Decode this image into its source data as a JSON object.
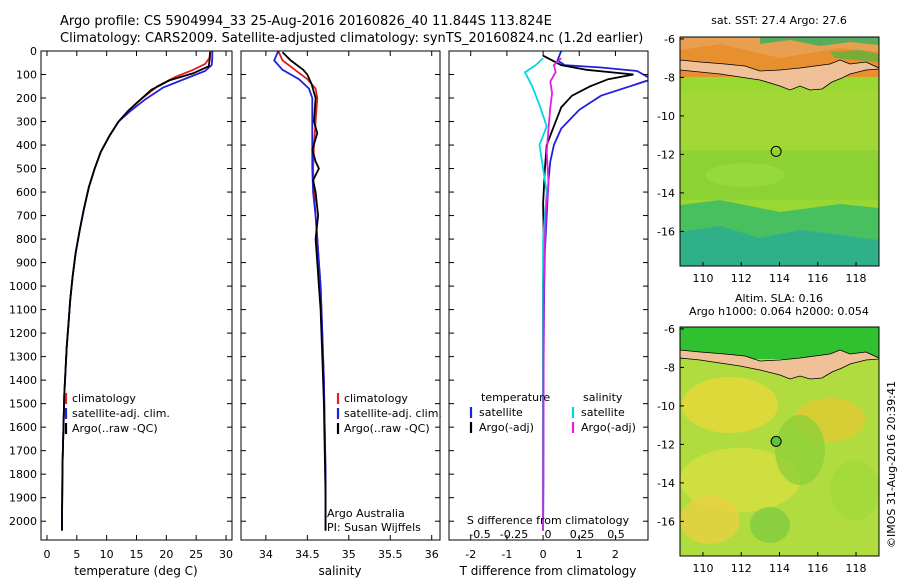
{
  "header": {
    "line1": "Argo profile: CS 5904994_33 25-Aug-2016 20160826_40 11.844S 113.824E",
    "line2": "Climatology: CARS2009. Satellite-adjusted climatology: synTS_20160824.nc (1.2d earlier)"
  },
  "side_note": "©IMOS 31-Aug-2016 20:39:41",
  "colors": {
    "climatology": "#e02020",
    "satellite": "#2020e0",
    "argo": "#000000",
    "sal_satellite": "#00d8e8",
    "sal_argo": "#e020e0"
  },
  "chart_data": [
    {
      "type": "line",
      "xlabel": "temperature (deg C)",
      "xlim": [
        -1,
        31
      ],
      "xticks": [
        0,
        5,
        10,
        15,
        20,
        25,
        30
      ],
      "xtick_labels": [
        "0",
        "5",
        "10",
        "15",
        "20",
        "25",
        "30"
      ],
      "ylim": [
        2080,
        0
      ],
      "yticks": [
        0,
        100,
        200,
        300,
        400,
        500,
        600,
        700,
        800,
        900,
        1000,
        1100,
        1200,
        1300,
        1400,
        1500,
        1600,
        1700,
        1800,
        1900,
        2000
      ],
      "ytick_labels": [
        "0",
        "100",
        "200",
        "300",
        "400",
        "500",
        "600",
        "700",
        "800",
        "900",
        "1000",
        "1100",
        "1200",
        "1300",
        "1400",
        "1500",
        "1600",
        "1700",
        "1800",
        "1900",
        "2000"
      ],
      "legend": [
        "climatology",
        "satellite-adj. clim.",
        "Argo(..raw -QC)"
      ],
      "legend_placement": "lower-left",
      "series": [
        {
          "name": "climatology",
          "color": "#e02020",
          "x": [
            27.4,
            27.2,
            26.5,
            24.5,
            21.5,
            18.5,
            16.0,
            13.8,
            12.0,
            10.5,
            9.0,
            8.0,
            7.0,
            6.2,
            5.5,
            4.8,
            4.3,
            3.9,
            3.6,
            3.3,
            3.1,
            2.9,
            2.8,
            2.7,
            2.6,
            2.55,
            2.5
          ],
          "y": [
            0,
            30,
            55,
            80,
            110,
            150,
            200,
            250,
            300,
            360,
            430,
            500,
            580,
            670,
            760,
            860,
            960,
            1060,
            1160,
            1260,
            1360,
            1460,
            1560,
            1660,
            1760,
            1900,
            2040
          ]
        },
        {
          "name": "satellite-adj. clim.",
          "color": "#2020e0",
          "x": [
            27.7,
            27.7,
            27.6,
            26.5,
            23.5,
            19.5,
            16.5,
            14.0,
            12.0,
            10.5,
            9.0,
            8.0,
            7.0,
            6.2,
            5.5,
            4.8,
            4.3,
            3.9,
            3.6,
            3.3,
            3.1,
            2.9,
            2.8,
            2.7,
            2.6,
            2.55,
            2.5
          ],
          "y": [
            0,
            30,
            60,
            85,
            115,
            155,
            205,
            255,
            300,
            360,
            430,
            500,
            580,
            670,
            760,
            860,
            960,
            1060,
            1160,
            1260,
            1360,
            1460,
            1560,
            1660,
            1760,
            1900,
            2040
          ]
        },
        {
          "name": "Argo(..raw -QC)",
          "color": "#000000",
          "x": [
            27.3,
            27.3,
            27.1,
            24.5,
            20.5,
            17.5,
            15.5,
            13.6,
            12.0,
            10.5,
            9.0,
            8.0,
            7.0,
            6.2,
            5.5,
            4.8,
            4.3,
            3.9,
            3.6,
            3.3,
            3.1,
            2.9,
            2.8,
            2.7,
            2.6,
            2.55,
            2.5
          ],
          "y": [
            5,
            30,
            65,
            95,
            125,
            165,
            210,
            255,
            300,
            360,
            430,
            500,
            580,
            670,
            760,
            860,
            960,
            1060,
            1160,
            1260,
            1360,
            1460,
            1560,
            1660,
            1760,
            1900,
            2040
          ]
        }
      ]
    },
    {
      "type": "line",
      "xlabel": "salinity",
      "xlim": [
        33.7,
        36.1
      ],
      "xticks": [
        34,
        34.5,
        35,
        35.5,
        36
      ],
      "xtick_labels": [
        "34",
        "34.5",
        "35",
        "35.5",
        "36"
      ],
      "ylim": [
        2080,
        0
      ],
      "legend": [
        "climatology",
        "satellite-adj. clim.",
        "Argo(..raw -QC)"
      ],
      "legend_placement": "lower-right",
      "annotation": [
        "Argo Australia",
        "PI: Susan Wijffels"
      ],
      "series": [
        {
          "name": "climatology",
          "color": "#e02020",
          "x": [
            34.15,
            34.2,
            34.35,
            34.5,
            34.6,
            34.62,
            34.6,
            34.58,
            34.57,
            34.58,
            34.6,
            34.62,
            34.64,
            34.66,
            34.68,
            34.7,
            34.71,
            34.72,
            34.72,
            34.72,
            34.72
          ],
          "y": [
            0,
            40,
            80,
            120,
            160,
            200,
            300,
            400,
            500,
            600,
            700,
            800,
            900,
            1000,
            1200,
            1400,
            1600,
            1800,
            1900,
            2000,
            2040
          ]
        },
        {
          "name": "satellite-adj. clim.",
          "color": "#2020e0",
          "x": [
            34.15,
            34.1,
            34.2,
            34.4,
            34.52,
            34.56,
            34.56,
            34.56,
            34.56,
            34.57,
            34.6,
            34.62,
            34.64,
            34.66,
            34.68,
            34.7,
            34.71,
            34.72,
            34.72,
            34.72,
            34.72
          ],
          "y": [
            0,
            40,
            80,
            120,
            160,
            200,
            300,
            400,
            500,
            600,
            700,
            800,
            900,
            1000,
            1200,
            1400,
            1600,
            1800,
            1900,
            2000,
            2040
          ]
        },
        {
          "name": "Argo(..raw -QC)",
          "color": "#000000",
          "x": [
            34.2,
            34.3,
            34.45,
            34.5,
            34.55,
            34.6,
            34.58,
            34.62,
            34.56,
            34.6,
            34.64,
            34.57,
            34.6,
            34.63,
            34.6,
            34.62,
            34.64,
            34.66,
            34.68,
            34.7,
            34.71,
            34.72,
            34.72
          ],
          "y": [
            5,
            40,
            80,
            100,
            140,
            200,
            300,
            350,
            420,
            470,
            500,
            550,
            600,
            700,
            800,
            900,
            1000,
            1100,
            1300,
            1500,
            1700,
            1900,
            2040
          ]
        }
      ]
    },
    {
      "type": "line",
      "xlabel": "T difference from climatology",
      "xlabel_top": "S difference from climatology",
      "xlim": [
        -2.6,
        2.9
      ],
      "xticks": [
        -2,
        -1,
        0,
        1,
        2
      ],
      "xtick_labels": [
        "-2",
        "-1",
        "0",
        "1",
        "2"
      ],
      "sticks": [
        -0.5,
        -0.25,
        0,
        0.25,
        0.5
      ],
      "stick_labels": [
        "-0.5",
        "-0.25",
        "0",
        "0.25",
        "0.5"
      ],
      "ylim": [
        2080,
        0
      ],
      "legend_groups": [
        {
          "title": "temperature",
          "items": [
            "satellite",
            "Argo(-adj)"
          ]
        },
        {
          "title": "salinity",
          "items": [
            "satellite",
            "Argo(-adj)"
          ]
        }
      ],
      "legend_placement": "lower",
      "series": [
        {
          "name": "satellite",
          "color": "#2020e0",
          "x": [
            0.5,
            0.4,
            0.6,
            1.6,
            2.6,
            3.0,
            2.4,
            1.6,
            1.0,
            0.5,
            0.3,
            0.2,
            0.15,
            0.1,
            0.05,
            0.03,
            0.02,
            0.01,
            0.01,
            0.0
          ],
          "y": [
            0,
            40,
            60,
            70,
            85,
            120,
            150,
            190,
            250,
            330,
            400,
            470,
            550,
            700,
            850,
            1000,
            1200,
            1500,
            1800,
            2040
          ]
        },
        {
          "name": "Argo(-adj)",
          "color": "#000000",
          "x": [
            0.0,
            0.5,
            1.2,
            2.5,
            1.8,
            1.3,
            0.8,
            0.5,
            0.3,
            0.1,
            0.05,
            0.0,
            0.02,
            0.0,
            0.0,
            0.0
          ],
          "y": [
            20,
            60,
            80,
            100,
            120,
            150,
            190,
            240,
            320,
            400,
            500,
            650,
            800,
            1000,
            1500,
            2040
          ]
        },
        {
          "name": "salinity satellite",
          "color": "#00d8e8",
          "x": [
            0.0,
            -0.2,
            -0.5,
            -0.3,
            -0.1,
            0.1,
            -0.1,
            0.0,
            0.1,
            0.0,
            0.0,
            0.0
          ],
          "y": [
            30,
            60,
            90,
            150,
            230,
            320,
            400,
            500,
            600,
            800,
            1200,
            2040
          ]
        },
        {
          "name": "salinity Argo(-adj)",
          "color": "#e020e0",
          "x": [
            0.5,
            0.3,
            0.35,
            0.2,
            0.25,
            0.2,
            0.15,
            0.1,
            0.15,
            0.08,
            0.05,
            0.02,
            0.0
          ],
          "y": [
            30,
            60,
            90,
            130,
            180,
            240,
            330,
            430,
            560,
            680,
            800,
            1000,
            2040
          ]
        }
      ]
    },
    {
      "type": "heatmap",
      "title": "sat. SST: 27.4  Argo: 27.6",
      "xlim": [
        108.8,
        119.2
      ],
      "ylim": [
        -17.8,
        -5.9
      ],
      "xticks": [
        110,
        112,
        114,
        116,
        118
      ],
      "xtick_labels": [
        "110",
        "112",
        "114",
        "116",
        "118"
      ],
      "yticks": [
        -6,
        -8,
        -10,
        -12,
        -14,
        -16
      ],
      "ytick_labels": [
        "-6",
        "-8",
        "-10",
        "-12",
        "-14",
        "-16"
      ],
      "marker": {
        "lon": 113.824,
        "lat": -11.844
      }
    },
    {
      "type": "heatmap",
      "title_lines": [
        "Altim. SLA: 0.16",
        "Argo h1000: 0.064  h2000: 0.054"
      ],
      "xlim": [
        108.8,
        119.2
      ],
      "ylim": [
        -17.8,
        -5.9
      ],
      "xticks": [
        110,
        112,
        114,
        116,
        118
      ],
      "xtick_labels": [
        "110",
        "112",
        "114",
        "116",
        "118"
      ],
      "yticks": [
        -6,
        -8,
        -10,
        -12,
        -14,
        -16
      ],
      "ytick_labels": [
        "-6",
        "-8",
        "-10",
        "-12",
        "-14",
        "-16"
      ],
      "marker": {
        "lon": 113.824,
        "lat": -11.844
      }
    }
  ]
}
